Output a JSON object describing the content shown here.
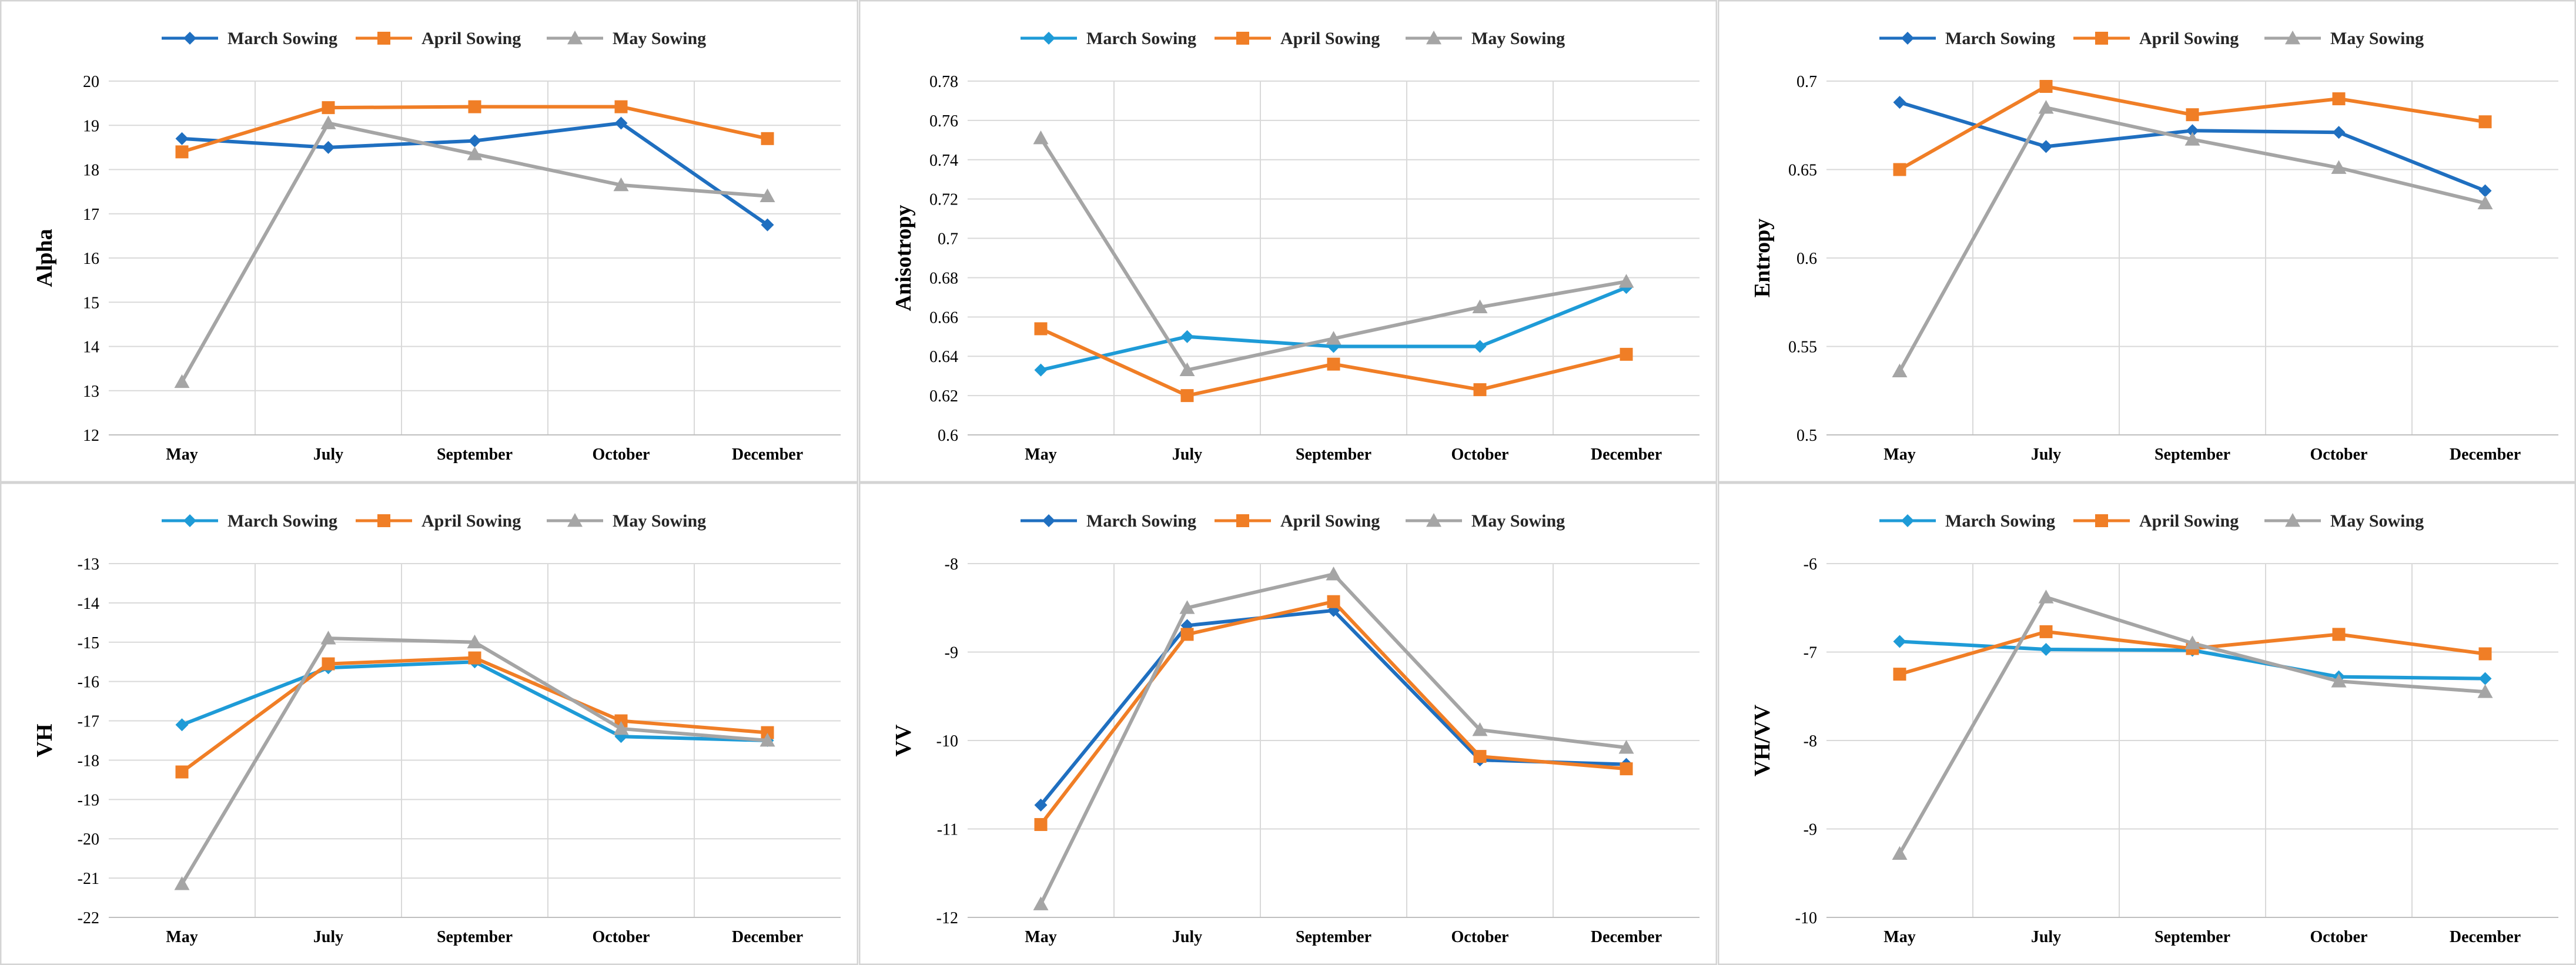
{
  "categories": [
    "May",
    "July",
    "September",
    "October",
    "December"
  ],
  "colors": {
    "march_blue": "#1F6FC0",
    "march_cyan": "#1E9BD7",
    "april": "#F07E26",
    "may": "#A5A5A5"
  },
  "chart_data": [
    {
      "type": "line",
      "ylabel": "Alpha",
      "ylim": [
        12,
        20
      ],
      "yticks": [
        "12",
        "13",
        "14",
        "15",
        "16",
        "17",
        "18",
        "19",
        "20"
      ],
      "series": [
        {
          "name": "March Sowing",
          "marker": "diamond",
          "color": "#1F6FC0",
          "values": [
            18.7,
            18.5,
            18.65,
            19.05,
            16.75
          ]
        },
        {
          "name": "April Sowing",
          "marker": "square",
          "color": "#F07E26",
          "values": [
            18.4,
            19.4,
            19.42,
            19.42,
            18.7
          ]
        },
        {
          "name": "May Sowing",
          "marker": "triangle",
          "color": "#A5A5A5",
          "values": [
            13.2,
            19.05,
            18.35,
            17.65,
            17.4
          ]
        }
      ]
    },
    {
      "type": "line",
      "ylabel": "Anisotropy",
      "ylim": [
        0.6,
        0.78
      ],
      "yticks": [
        "0.6",
        "0.62",
        "0.64",
        "0.66",
        "0.68",
        "0.7",
        "0.72",
        "0.74",
        "0.76",
        "0.78"
      ],
      "series": [
        {
          "name": "March Sowing",
          "marker": "diamond",
          "color": "#1E9BD7",
          "values": [
            0.633,
            0.65,
            0.645,
            0.645,
            0.675
          ]
        },
        {
          "name": "April Sowing",
          "marker": "square",
          "color": "#F07E26",
          "values": [
            0.654,
            0.62,
            0.636,
            0.623,
            0.641
          ]
        },
        {
          "name": "May Sowing",
          "marker": "triangle",
          "color": "#A5A5A5",
          "values": [
            0.751,
            0.633,
            0.649,
            0.665,
            0.678
          ]
        }
      ]
    },
    {
      "type": "line",
      "ylabel": "Entropy",
      "ylim": [
        0.5,
        0.7
      ],
      "yticks": [
        "0.5",
        "0.55",
        "0.6",
        "0.65",
        "0.7"
      ],
      "series": [
        {
          "name": "March Sowing",
          "marker": "diamond",
          "color": "#1F6FC0",
          "values": [
            0.688,
            0.663,
            0.672,
            0.671,
            0.638
          ]
        },
        {
          "name": "April Sowing",
          "marker": "square",
          "color": "#F07E26",
          "values": [
            0.65,
            0.697,
            0.681,
            0.69,
            0.677
          ]
        },
        {
          "name": "May Sowing",
          "marker": "triangle",
          "color": "#A5A5A5",
          "values": [
            0.536,
            0.685,
            0.667,
            0.651,
            0.631
          ]
        }
      ]
    },
    {
      "type": "line",
      "ylabel": "VH",
      "ylim": [
        -22,
        -13
      ],
      "yticks": [
        "-22",
        "-21",
        "-20",
        "-19",
        "-18",
        "-17",
        "-16",
        "-15",
        "-14",
        "-13"
      ],
      "series": [
        {
          "name": "March Sowing",
          "marker": "diamond",
          "color": "#1E9BD7",
          "values": [
            -17.1,
            -15.65,
            -15.5,
            -17.4,
            -17.5
          ]
        },
        {
          "name": "April Sowing",
          "marker": "square",
          "color": "#F07E26",
          "values": [
            -18.3,
            -15.55,
            -15.4,
            -17.0,
            -17.3
          ]
        },
        {
          "name": "May Sowing",
          "marker": "triangle",
          "color": "#A5A5A5",
          "values": [
            -21.15,
            -14.9,
            -15.0,
            -17.2,
            -17.5
          ]
        }
      ]
    },
    {
      "type": "line",
      "ylabel": "VV",
      "ylim": [
        -12,
        -8
      ],
      "yticks": [
        "-12",
        "-11",
        "-10",
        "-9",
        "-8"
      ],
      "series": [
        {
          "name": "March Sowing",
          "marker": "diamond",
          "color": "#1F6FC0",
          "values": [
            -10.73,
            -8.7,
            -8.53,
            -10.22,
            -10.27
          ]
        },
        {
          "name": "April Sowing",
          "marker": "square",
          "color": "#F07E26",
          "values": [
            -10.95,
            -8.8,
            -8.43,
            -10.18,
            -10.32
          ]
        },
        {
          "name": "May Sowing",
          "marker": "triangle",
          "color": "#A5A5A5",
          "values": [
            -11.85,
            -8.5,
            -8.12,
            -9.88,
            -10.08
          ]
        }
      ]
    },
    {
      "type": "line",
      "ylabel": "VH/VV",
      "ylim": [
        -10,
        -6
      ],
      "yticks": [
        "-10",
        "-9",
        "-8",
        "-7",
        "-6"
      ],
      "series": [
        {
          "name": "March Sowing",
          "marker": "diamond",
          "color": "#1E9BD7",
          "values": [
            -6.88,
            -6.97,
            -6.98,
            -7.28,
            -7.3
          ]
        },
        {
          "name": "April Sowing",
          "marker": "square",
          "color": "#F07E26",
          "values": [
            -7.25,
            -6.77,
            -6.96,
            -6.8,
            -7.02
          ]
        },
        {
          "name": "May Sowing",
          "marker": "triangle",
          "color": "#A5A5A5",
          "values": [
            -9.28,
            -6.38,
            -6.9,
            -7.33,
            -7.45
          ]
        }
      ]
    }
  ]
}
